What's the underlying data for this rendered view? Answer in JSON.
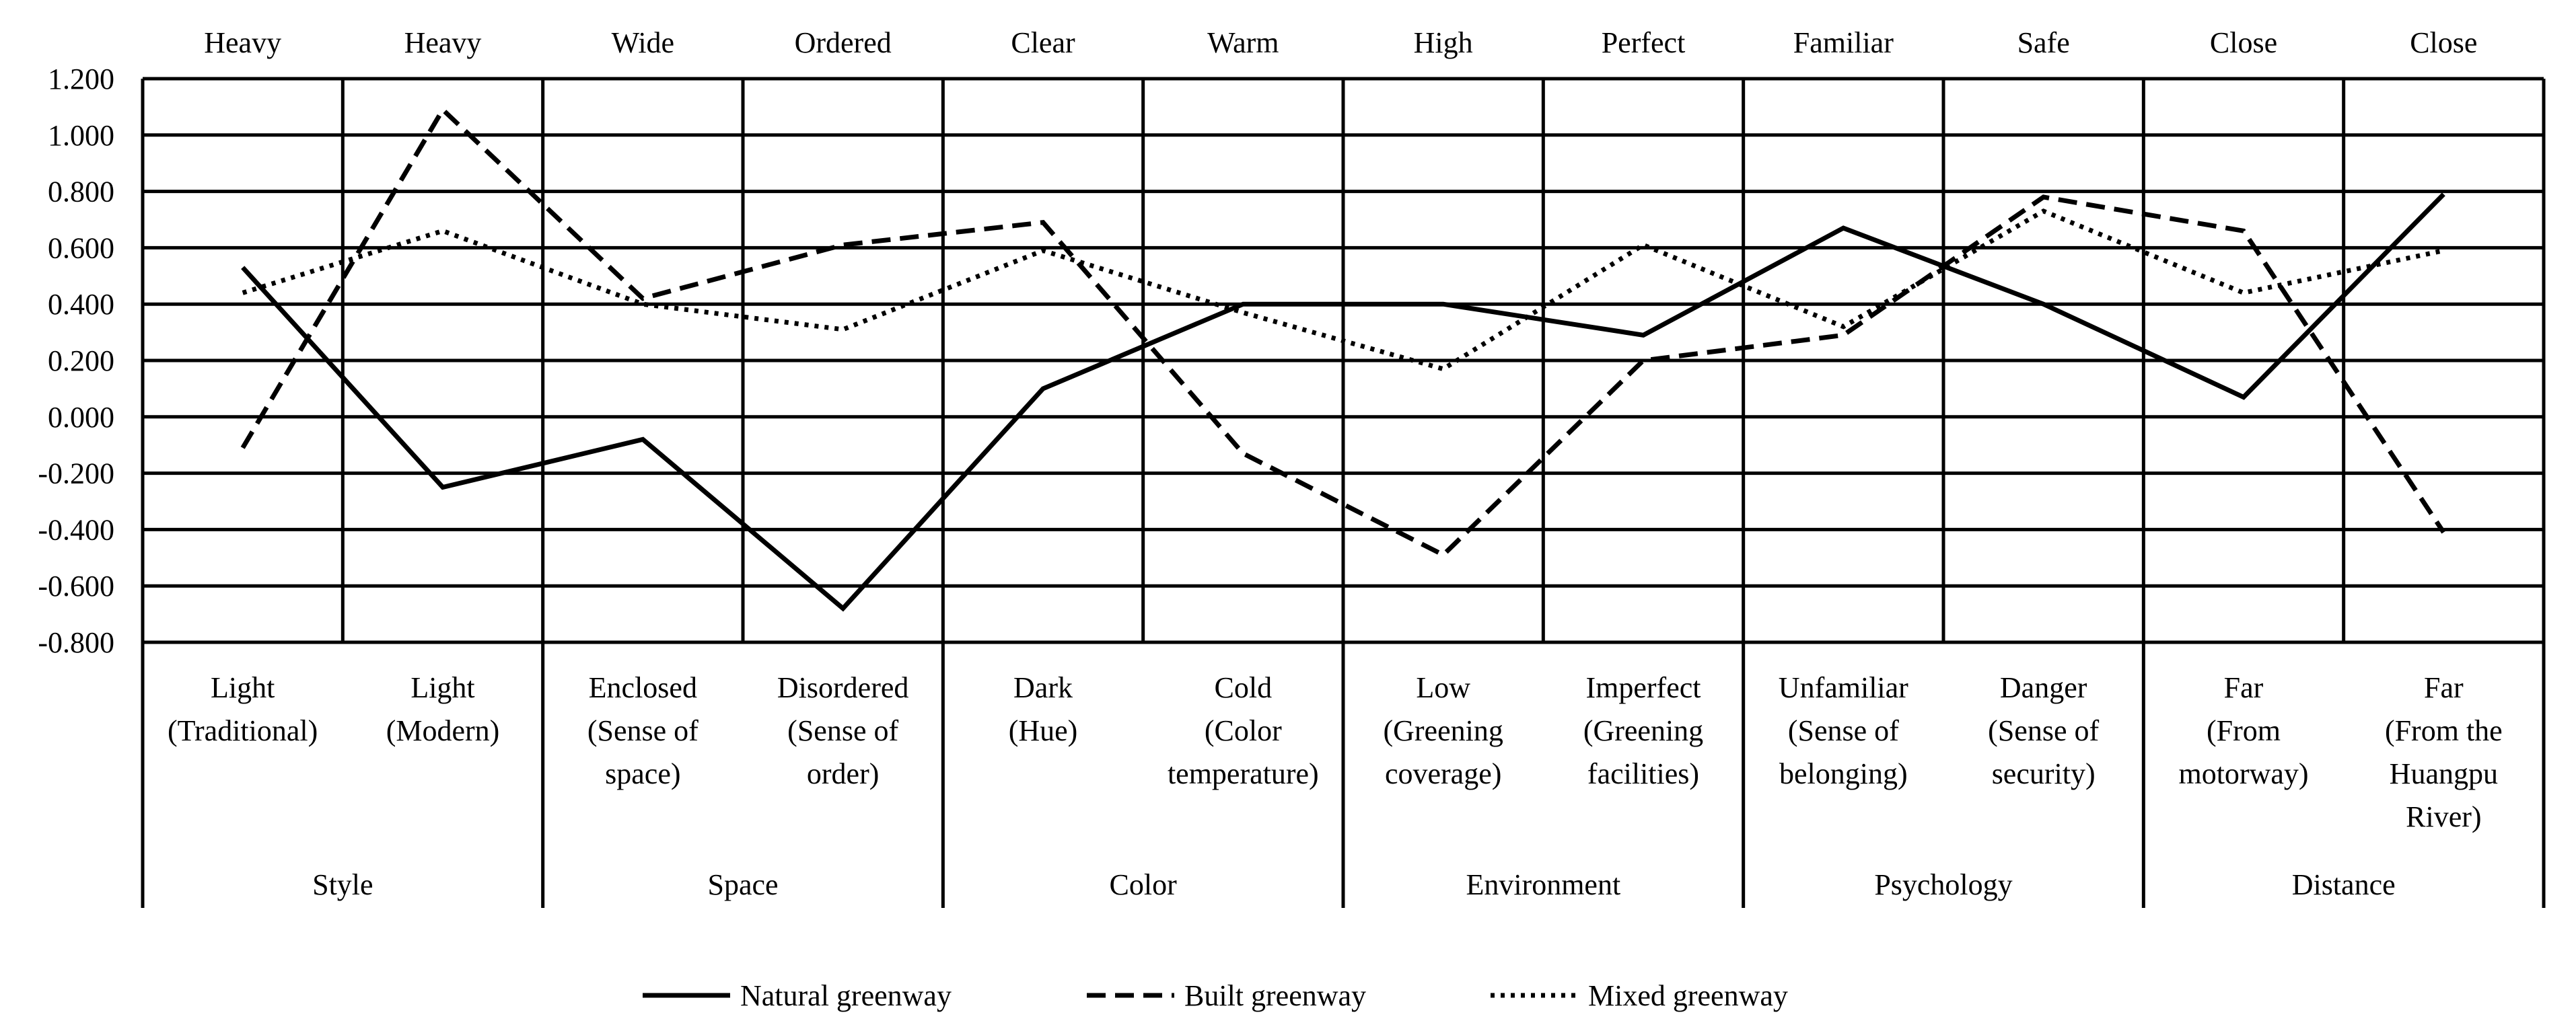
{
  "chart_data": {
    "type": "line",
    "title": "",
    "ylim": [
      -0.8,
      1.2
    ],
    "yticks": [
      "1.200",
      "1.000",
      "0.800",
      "0.600",
      "0.400",
      "0.200",
      "0.000",
      "-0.200",
      "-0.400",
      "-0.600",
      "-0.800"
    ],
    "top_labels": [
      "Heavy",
      "Heavy",
      "Wide",
      "Ordered",
      "Clear",
      "Warm",
      "High",
      "Perfect",
      "Familiar",
      "Safe",
      "Close",
      "Close"
    ],
    "bottom_labels": [
      [
        "Light",
        "(Traditional)"
      ],
      [
        "Light",
        "(Modern)"
      ],
      [
        "Enclosed",
        "(Sense of",
        "space)"
      ],
      [
        "Disordered",
        "(Sense of",
        "order)"
      ],
      [
        "Dark",
        "(Hue)"
      ],
      [
        "Cold",
        "(Color",
        "temperature)"
      ],
      [
        "Low",
        "(Greening",
        "coverage)"
      ],
      [
        "Imperfect",
        "(Greening",
        "facilities)"
      ],
      [
        "Unfamiliar",
        "(Sense of",
        "belonging)"
      ],
      [
        "Danger",
        "(Sense of",
        "security)"
      ],
      [
        "Far",
        "(From",
        "motorway)"
      ],
      [
        "Far",
        "(From the",
        "Huangpu",
        "River)"
      ]
    ],
    "groups": [
      "Style",
      "Space",
      "Color",
      "Environment",
      "Psychology",
      "Distance"
    ],
    "series": [
      {
        "name": "Natural greenway",
        "style": "solid",
        "values": [
          0.53,
          -0.25,
          -0.08,
          -0.68,
          0.1,
          0.4,
          0.4,
          0.29,
          0.67,
          0.4,
          0.07,
          0.79
        ]
      },
      {
        "name": "Built greenway",
        "style": "dashed",
        "values": [
          -0.11,
          1.09,
          0.42,
          0.61,
          0.69,
          -0.13,
          -0.49,
          0.2,
          0.29,
          0.78,
          0.66,
          -0.41
        ]
      },
      {
        "name": "Mixed greenway",
        "style": "dotted",
        "values": [
          0.44,
          0.66,
          0.4,
          0.31,
          0.59,
          0.37,
          0.17,
          0.61,
          0.32,
          0.73,
          0.44,
          0.59
        ]
      }
    ]
  }
}
